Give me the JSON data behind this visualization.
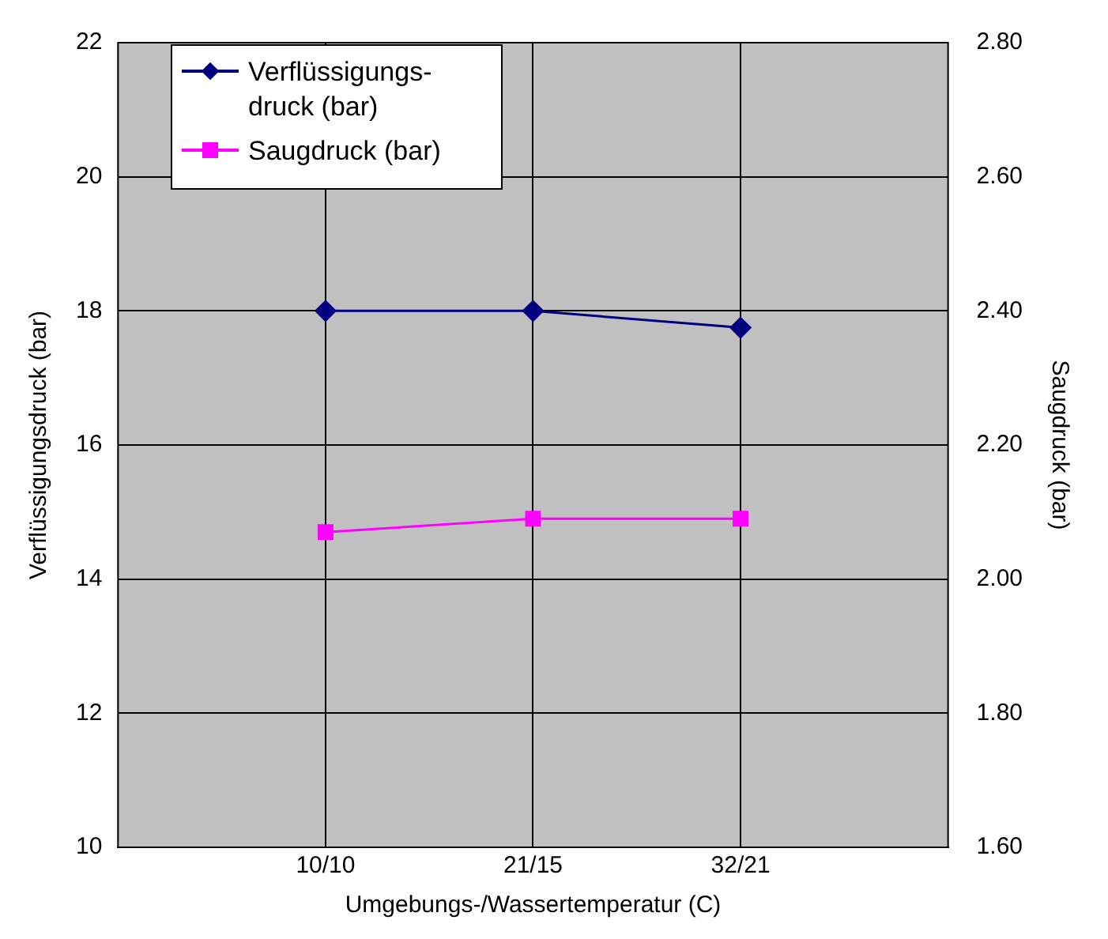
{
  "chart_data": {
    "type": "line",
    "xlabel": "Umgebungs-/Wassertemperatur (C)",
    "ylabel": "Verflüssigungsdruck (bar)",
    "y2label": "Saugdruck (bar)",
    "categories": [
      "10/10",
      "21/15",
      "32/21"
    ],
    "series": [
      {
        "name": "Verflüssigungs-druck (bar)",
        "color": "#000080",
        "marker": "diamond",
        "values": [
          18,
          18,
          17.75
        ]
      },
      {
        "name": "Saugdruck (bar)",
        "color": "#ff00ff",
        "marker": "square",
        "axis": "y2",
        "values": [
          2.07,
          2.09,
          2.09
        ]
      }
    ],
    "ylim": [
      10,
      22
    ],
    "yticks": [
      10,
      12,
      14,
      16,
      18,
      20,
      22
    ],
    "y2lim": [
      1.6,
      2.8
    ],
    "y2ticks": [
      {
        "value": 1.6,
        "label": "1.60"
      },
      {
        "value": 1.8,
        "label": "1.80"
      },
      {
        "value": 2.0,
        "label": "2.00"
      },
      {
        "value": 2.2,
        "label": "2.20"
      },
      {
        "value": 2.4,
        "label": "2.40"
      },
      {
        "value": 2.6,
        "label": "2.60"
      },
      {
        "value": 2.8,
        "label": "2.80"
      }
    ],
    "grid": true,
    "legend": "top left",
    "line_style": "solid"
  }
}
